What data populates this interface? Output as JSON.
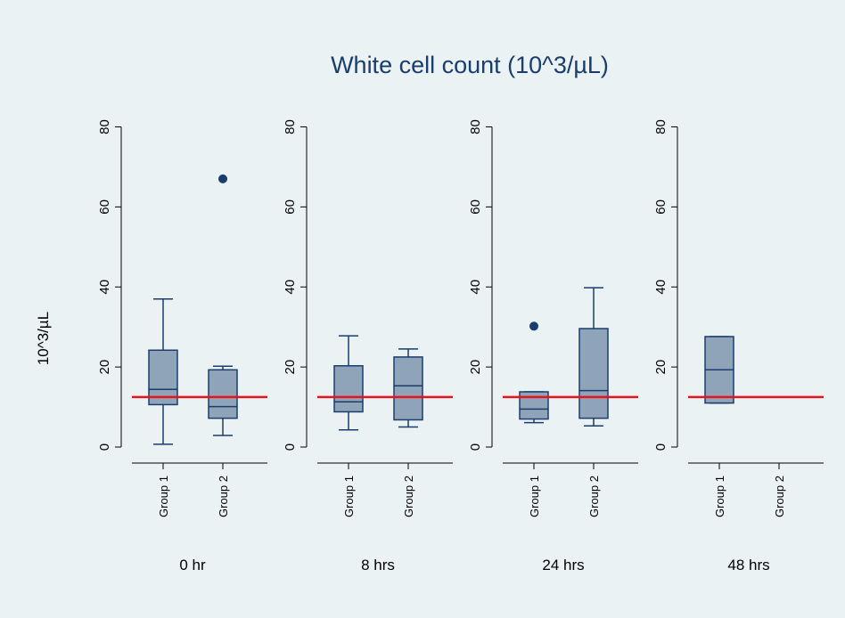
{
  "chart_data": {
    "type": "box",
    "title": "White cell count (10^3/µL)",
    "ylabel": "10^3/µL",
    "ylim": [
      -4,
      85
    ],
    "yticks": [
      0,
      20,
      40,
      60,
      80
    ],
    "categories": [
      "Group 1",
      "Group 2"
    ],
    "reference_line": {
      "value": 12.5,
      "color": "#e8141a"
    },
    "colors": {
      "background": "#eaf2f3",
      "box_fill": "#8fa4b9",
      "box_stroke": "#1a3d6d",
      "outlier": "#1a3d6d"
    },
    "panels": [
      {
        "label": "0 hr",
        "boxes": [
          {
            "category": "Group 1",
            "whisker_low": 0.7,
            "q1": 10.6,
            "median": 14.4,
            "q3": 24.2,
            "whisker_high": 37,
            "outliers": []
          },
          {
            "category": "Group 2",
            "whisker_low": 2.9,
            "q1": 7.2,
            "median": 10.1,
            "q3": 19.3,
            "whisker_high": 20.2,
            "outliers": [
              67
            ]
          }
        ]
      },
      {
        "label": "8 hrs",
        "boxes": [
          {
            "category": "Group 1",
            "whisker_low": 4.3,
            "q1": 8.8,
            "median": 11.3,
            "q3": 20.3,
            "whisker_high": 27.8,
            "outliers": []
          },
          {
            "category": "Group 2",
            "whisker_low": 5,
            "q1": 6.8,
            "median": 15.3,
            "q3": 22.5,
            "whisker_high": 24.5,
            "outliers": []
          }
        ]
      },
      {
        "label": "24 hrs",
        "boxes": [
          {
            "category": "Group 1",
            "whisker_low": 6.1,
            "q1": 7,
            "median": 9.5,
            "q3": 13.8,
            "whisker_high": 13.8,
            "outliers": [
              30.2
            ]
          },
          {
            "category": "Group 2",
            "whisker_low": 5.3,
            "q1": 7.2,
            "median": 14.1,
            "q3": 29.6,
            "whisker_high": 39.8,
            "outliers": []
          }
        ]
      },
      {
        "label": "48 hrs",
        "boxes": [
          {
            "category": "Group 1",
            "whisker_low": 11,
            "q1": 11,
            "median": 19.3,
            "q3": 27.6,
            "whisker_high": 27.6,
            "outliers": []
          }
        ]
      }
    ]
  }
}
